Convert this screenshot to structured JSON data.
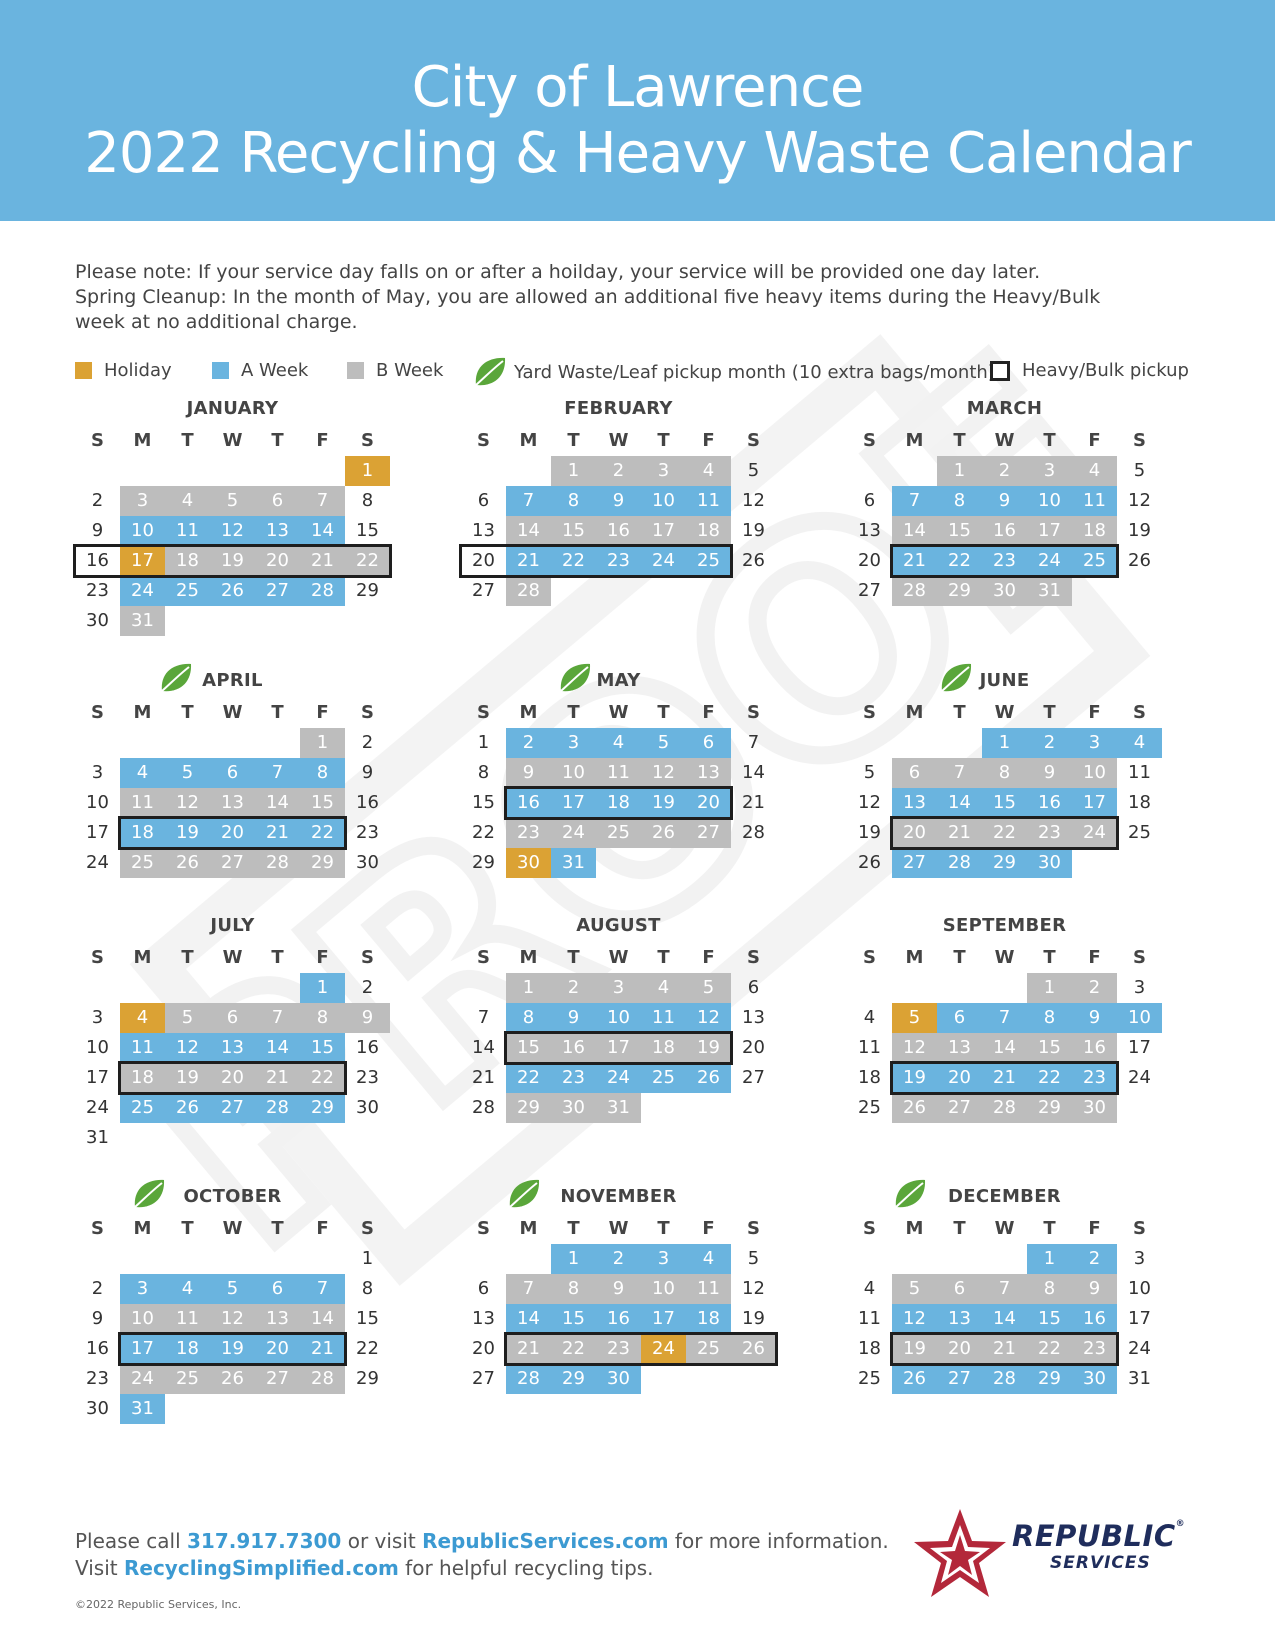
{
  "header": {
    "title_line1": "City of Lawrence",
    "title_line2": "2022 Recycling & Heavy Waste Calendar"
  },
  "notes": {
    "line1": "Please note: If your service day falls on or after a hoilday, your service will be provided one day later.",
    "line2": "Spring Cleanup: In the month of May, you are allowed an additional five heavy items during the Heavy/Bulk week at no additional charge."
  },
  "legend": {
    "holiday": "Holiday",
    "a_week": "A Week",
    "b_week": "B Week",
    "yard": "Yard Waste/Leaf pickup month (10 extra bags/month)",
    "heavy": "Heavy/Bulk pickup"
  },
  "colors": {
    "a_week": "#6ab4df",
    "b_week": "#bdbdbd",
    "holiday": "#dba234",
    "banner": "#6ab4df",
    "leaf": "#5aa63a"
  },
  "watermark": "PROOF",
  "day_headers": [
    "S",
    "M",
    "T",
    "W",
    "T",
    "F",
    "S"
  ],
  "months": [
    {
      "name": "JANUARY",
      "offset": 6,
      "days": 31,
      "leaf": false,
      "heavy": [
        16,
        22
      ],
      "a": [
        10,
        11,
        12,
        13,
        14,
        24,
        25,
        26,
        27,
        28
      ],
      "b": [
        3,
        4,
        5,
        6,
        7,
        18,
        19,
        20,
        21,
        22,
        31
      ],
      "h": [
        1,
        17
      ]
    },
    {
      "name": "FEBRUARY",
      "offset": 2,
      "days": 28,
      "leaf": false,
      "heavy": [
        20,
        25
      ],
      "a": [
        7,
        8,
        9,
        10,
        11,
        21,
        22,
        23,
        24,
        25
      ],
      "b": [
        1,
        2,
        3,
        4,
        14,
        15,
        16,
        17,
        18,
        28
      ],
      "h": []
    },
    {
      "name": "MARCH",
      "offset": 2,
      "days": 31,
      "leaf": false,
      "heavy": [
        21,
        25
      ],
      "a": [
        7,
        8,
        9,
        10,
        11,
        21,
        22,
        23,
        24,
        25
      ],
      "b": [
        1,
        2,
        3,
        4,
        14,
        15,
        16,
        17,
        18,
        28,
        29,
        30,
        31
      ],
      "h": []
    },
    {
      "name": "APRIL",
      "offset": 5,
      "days": 30,
      "leaf": true,
      "heavy": [
        18,
        22
      ],
      "a": [
        4,
        5,
        6,
        7,
        8,
        18,
        19,
        20,
        21,
        22
      ],
      "b": [
        1,
        11,
        12,
        13,
        14,
        15,
        25,
        26,
        27,
        28,
        29
      ],
      "h": []
    },
    {
      "name": "MAY",
      "offset": 0,
      "days": 31,
      "leaf": true,
      "heavy": [
        16,
        20
      ],
      "a": [
        2,
        3,
        4,
        5,
        6,
        16,
        17,
        18,
        19,
        20,
        31
      ],
      "b": [
        9,
        10,
        11,
        12,
        13,
        23,
        24,
        25,
        26,
        27
      ],
      "h": [
        30
      ]
    },
    {
      "name": "JUNE",
      "offset": 3,
      "days": 30,
      "leaf": true,
      "heavy": [
        20,
        24
      ],
      "a": [
        1,
        2,
        3,
        4,
        13,
        14,
        15,
        16,
        17,
        27,
        28,
        29,
        30
      ],
      "b": [
        6,
        7,
        8,
        9,
        10,
        20,
        21,
        22,
        23,
        24
      ],
      "h": []
    },
    {
      "name": "JULY",
      "offset": 5,
      "days": 31,
      "leaf": false,
      "heavy": [
        18,
        22
      ],
      "a": [
        1,
        11,
        12,
        13,
        14,
        15,
        25,
        26,
        27,
        28,
        29
      ],
      "b": [
        5,
        6,
        7,
        8,
        9,
        18,
        19,
        20,
        21,
        22
      ],
      "h": [
        4
      ]
    },
    {
      "name": "AUGUST",
      "offset": 1,
      "days": 31,
      "leaf": false,
      "heavy": [
        15,
        19
      ],
      "a": [
        8,
        9,
        10,
        11,
        12,
        22,
        23,
        24,
        25,
        26
      ],
      "b": [
        1,
        2,
        3,
        4,
        5,
        15,
        16,
        17,
        18,
        19,
        29,
        30,
        31
      ],
      "h": []
    },
    {
      "name": "SEPTEMBER",
      "offset": 4,
      "days": 30,
      "leaf": false,
      "heavy": [
        19,
        23
      ],
      "a": [
        6,
        7,
        8,
        9,
        10,
        19,
        20,
        21,
        22,
        23
      ],
      "b": [
        1,
        2,
        12,
        13,
        14,
        15,
        16,
        26,
        27,
        28,
        29,
        30
      ],
      "h": [
        5
      ]
    },
    {
      "name": "OCTOBER",
      "offset": 6,
      "days": 31,
      "leaf": true,
      "heavy": [
        17,
        21
      ],
      "a": [
        3,
        4,
        5,
        6,
        7,
        17,
        18,
        19,
        20,
        21,
        31
      ],
      "b": [
        10,
        11,
        12,
        13,
        14,
        24,
        25,
        26,
        27,
        28
      ],
      "h": []
    },
    {
      "name": "NOVEMBER",
      "offset": 2,
      "days": 30,
      "leaf": true,
      "heavy": [
        21,
        26
      ],
      "a": [
        1,
        2,
        3,
        4,
        14,
        15,
        16,
        17,
        18,
        28,
        29,
        30
      ],
      "b": [
        7,
        8,
        9,
        10,
        11,
        21,
        22,
        23,
        25,
        26
      ],
      "h": [
        24
      ]
    },
    {
      "name": "DECEMBER",
      "offset": 4,
      "days": 31,
      "leaf": true,
      "heavy": [
        19,
        23
      ],
      "a": [
        1,
        2,
        12,
        13,
        14,
        15,
        16,
        26,
        27,
        28,
        29,
        30
      ],
      "b": [
        5,
        6,
        7,
        8,
        9,
        19,
        20,
        21,
        22,
        23
      ],
      "h": []
    }
  ],
  "footer": {
    "pre1": "Please call ",
    "phone": "317.917.7300",
    "mid1": " or visit ",
    "site1": "RepublicServices.com",
    "post1": " for more information.",
    "pre2": "Visit ",
    "site2": "RecyclingSimplified.com",
    "post2": " for helpful recycling tips.",
    "copyright": "©2022 Republic Services, Inc."
  },
  "logo": {
    "line1": "REPUBLIC",
    "line2": "SERVICES",
    "reg": "®"
  }
}
